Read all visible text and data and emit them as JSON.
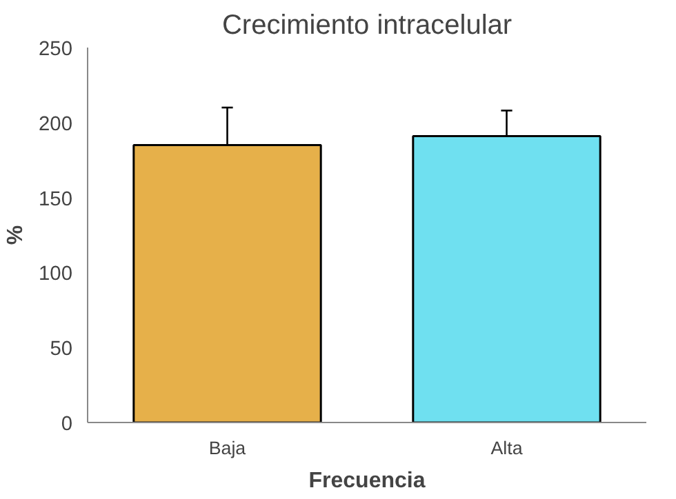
{
  "chart_data": {
    "type": "bar",
    "title": "Crecimiento intracelular",
    "xlabel": "Frecuencia",
    "ylabel": "%",
    "categories": [
      "Baja",
      "Alta"
    ],
    "values": [
      185,
      191
    ],
    "colors": [
      "#e6b04a",
      "#6fe0f0"
    ],
    "errors": [
      [
        185,
        210
      ],
      [
        191,
        208
      ]
    ],
    "ylim": [
      0,
      250
    ],
    "yticks": [
      0,
      50,
      100,
      150,
      200,
      250
    ],
    "grid": false
  }
}
